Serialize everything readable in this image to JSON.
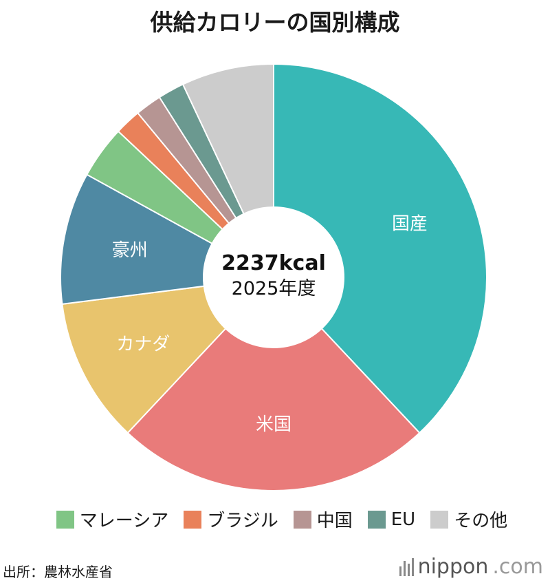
{
  "title": "供給カロリーの国別構成",
  "center": {
    "total": "2237kcal",
    "sub": "2025年度"
  },
  "chart_data": {
    "type": "pie",
    "title": "供給カロリーの国別構成",
    "slices": [
      {
        "label": "国産",
        "value": 38,
        "color": "#37b8b6",
        "show_label": true
      },
      {
        "label": "米国",
        "value": 24,
        "color": "#e97b7a",
        "show_label": true
      },
      {
        "label": "カナダ",
        "value": 11,
        "color": "#e8c46d",
        "show_label": true
      },
      {
        "label": "豪州",
        "value": 10,
        "color": "#4f89a3",
        "show_label": true
      },
      {
        "label": "マレーシア",
        "value": 4,
        "color": "#80c585",
        "show_label": false
      },
      {
        "label": "ブラジル",
        "value": 2,
        "color": "#e9815a",
        "show_label": false
      },
      {
        "label": "中国",
        "value": 2,
        "color": "#b69593",
        "show_label": false
      },
      {
        "label": "EU",
        "value": 2,
        "color": "#6b9990",
        "show_label": false
      },
      {
        "label": "その他",
        "value": 7,
        "color": "#cccccc",
        "show_label": false
      }
    ],
    "legend": [
      "マレーシア",
      "ブラジル",
      "中国",
      "EU",
      "その他"
    ],
    "legend_placement": "bottom"
  },
  "source": "出所：農林水産省",
  "brand": {
    "name": "nippon",
    "domain": ".com"
  }
}
